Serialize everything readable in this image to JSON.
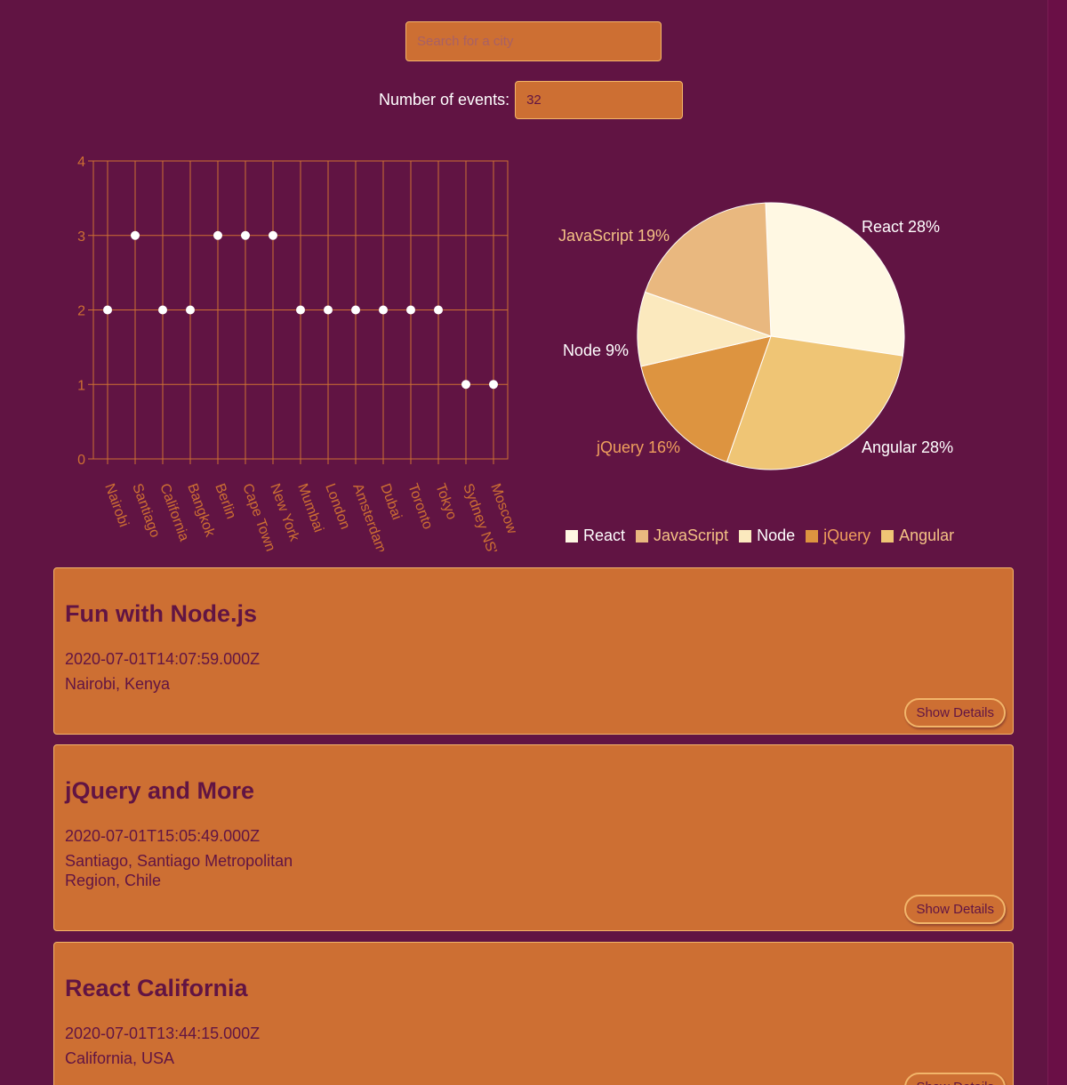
{
  "search": {
    "placeholder": "Search for a city"
  },
  "events_count": {
    "label": "Number of events:",
    "value": "32"
  },
  "chart_data": [
    {
      "type": "scatter",
      "categories": [
        "Nairobi",
        "Santiago",
        "California",
        "Bangkok",
        "Berlin",
        "Cape Town",
        "New York",
        "Mumbai",
        "London",
        "Amsterdam",
        "Dubai",
        "Toronto",
        "Tokyo",
        "Sydney NSW",
        "Moscow"
      ],
      "values": [
        2,
        3,
        2,
        2,
        3,
        3,
        3,
        2,
        2,
        2,
        2,
        2,
        2,
        1,
        1
      ],
      "ylim": [
        0,
        4
      ],
      "yticks": [
        "0",
        "1",
        "2",
        "3",
        "4"
      ],
      "grid": true,
      "colors": {
        "axis": "#cd6f33",
        "point": "#ffffff"
      }
    },
    {
      "type": "pie",
      "slices": [
        {
          "name": "React",
          "value": 28,
          "label": "React 28%",
          "color": "#fff8e3",
          "label_color": "#ffffff"
        },
        {
          "name": "Angular",
          "value": 28,
          "label": "Angular 28%",
          "color": "#efc575",
          "label_color": "#ffffff"
        },
        {
          "name": "jQuery",
          "value": 16,
          "label": "jQuery 16%",
          "color": "#dd9440",
          "label_color": "#ef9f5d"
        },
        {
          "name": "Node",
          "value": 9,
          "label": "Node 9%",
          "color": "#fbe9be",
          "label_color": "#ffffff"
        },
        {
          "name": "JavaScript",
          "value": 19,
          "label": "JavaScript 19%",
          "color": "#e9b87f",
          "label_color": "#f4c285"
        }
      ],
      "legend": {
        "placement": "bottom",
        "items": [
          {
            "label": "React",
            "color": "#fff8e3",
            "text_color": "#ffffff"
          },
          {
            "label": "JavaScript",
            "color": "#e9b87f",
            "text_color": "#f4c285"
          },
          {
            "label": "Node",
            "color": "#fbe9be",
            "text_color": "#ffffff"
          },
          {
            "label": "jQuery",
            "color": "#dd9440",
            "text_color": "#ef9f5d"
          },
          {
            "label": "Angular",
            "color": "#efc575",
            "text_color": "#f4c285"
          }
        ]
      }
    }
  ],
  "events": [
    {
      "title": "Fun with Node.js",
      "date": "2020-07-01T14:07:59.000Z",
      "location": "Nairobi, Kenya",
      "button": "Show Details"
    },
    {
      "title": "jQuery and More",
      "date": "2020-07-01T15:05:49.000Z",
      "location": "Santiago, Santiago Metropolitan Region, Chile",
      "button": "Show Details"
    },
    {
      "title": "React California",
      "date": "2020-07-01T13:44:15.000Z",
      "location": "California, USA",
      "button": "Show Details"
    }
  ]
}
